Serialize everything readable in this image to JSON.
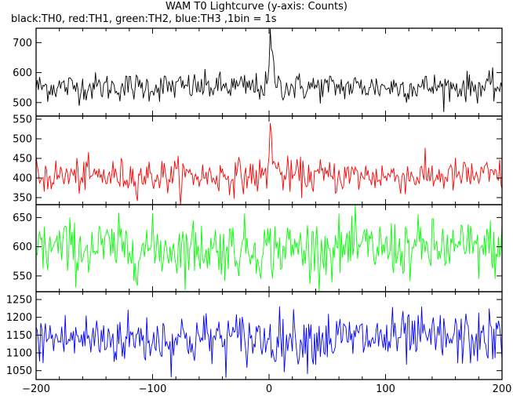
{
  "title": "WAM T0 Lightcurve (y-axis: Counts)",
  "subtitle": "black:TH0, red:TH1, green:TH2, blue:TH3 ,1bin = 1s",
  "chart_data": {
    "type": "line",
    "x_range": [
      -200,
      200
    ],
    "x_ticks": [
      -200,
      -100,
      0,
      100,
      200
    ],
    "x_tick_labels": [
      "−200",
      "−100",
      "0",
      "100",
      "200"
    ],
    "panels": [
      {
        "series": "TH0",
        "color": "#000000",
        "ylim": [
          455,
          748
        ],
        "y_ticks": [
          500,
          600,
          700
        ],
        "y_tick_labels": [
          "500",
          "600",
          "700"
        ],
        "baseline": 552,
        "noise": 24,
        "peak_at": 1,
        "peak_height": 185
      },
      {
        "series": "TH1",
        "color": "#ff0000",
        "ylim": [
          332,
          558
        ],
        "y_ticks": [
          350,
          400,
          450,
          500,
          550
        ],
        "y_tick_labels": [
          "350",
          "400",
          "450",
          "500",
          "550"
        ],
        "baseline": 405,
        "noise": 22,
        "peak_at": 1,
        "peak_height": 145
      },
      {
        "series": "TH2",
        "color": "#00ff00",
        "ylim": [
          523,
          672
        ],
        "y_ticks": [
          550,
          600,
          650
        ],
        "y_tick_labels": [
          "550",
          "600",
          "650"
        ],
        "baseline": 597,
        "noise": 25,
        "peak_at": null,
        "peak_height": 0
      },
      {
        "series": "TH3",
        "color": "#0000ff",
        "ylim": [
          1025,
          1272
        ],
        "y_ticks": [
          1050,
          1100,
          1150,
          1200,
          1250
        ],
        "y_tick_labels": [
          "1050",
          "1100",
          "1150",
          "1200",
          "1250"
        ],
        "baseline": 1140,
        "noise": 38,
        "peak_at": null,
        "peak_height": 0
      }
    ]
  }
}
